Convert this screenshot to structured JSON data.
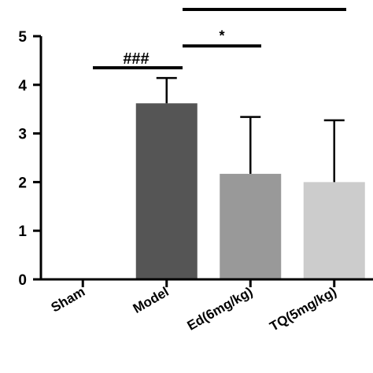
{
  "chart_data": {
    "type": "bar",
    "title": "",
    "xlabel": "",
    "ylabel": "",
    "ylim": [
      0,
      5
    ],
    "yticks": [
      "0",
      "1",
      "2",
      "3",
      "4",
      "5"
    ],
    "grid": false,
    "categories": [
      "Sham",
      "Model",
      "Ed(6mg/kg)",
      "TQ(5mg/kg)"
    ],
    "values": [
      0,
      3.62,
      2.17,
      2.0
    ],
    "error": [
      0,
      0.52,
      1.17,
      1.27
    ],
    "colors": [
      "#ffffff",
      "#555555",
      "#999999",
      "#cccccc"
    ],
    "significance": [
      {
        "label": "###",
        "from": 0,
        "to": 1,
        "y": 4.35
      },
      {
        "label": "*",
        "from": 1,
        "to": 2,
        "y": 4.8
      },
      {
        "label": "*",
        "from": 1,
        "to": 3,
        "y": 5.55
      }
    ]
  }
}
